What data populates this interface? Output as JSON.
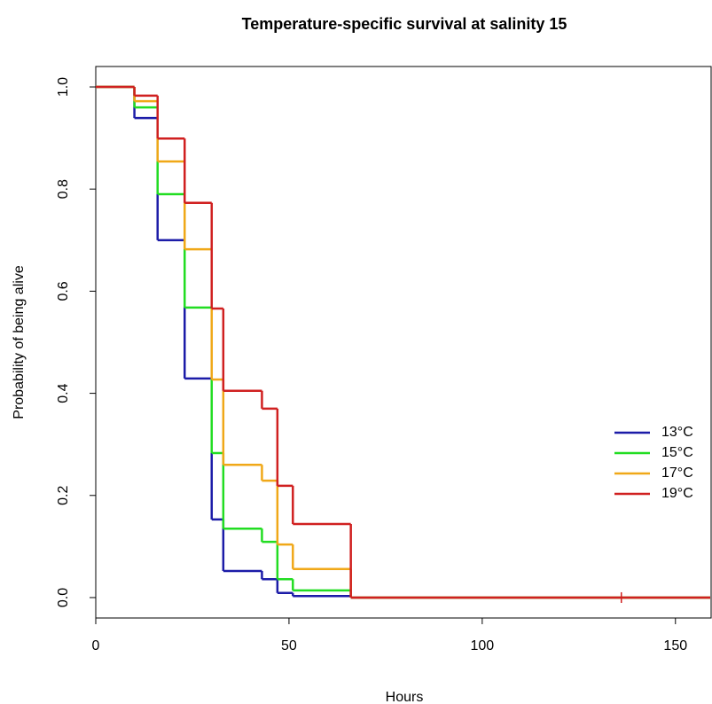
{
  "chart_data": {
    "type": "step",
    "title": "Temperature-specific survival at salinity 15",
    "x_label": "Hours",
    "y_label": "Probability of being alive",
    "x": [
      0,
      10,
      16,
      23,
      30,
      33,
      43,
      47,
      51,
      66
    ],
    "series": [
      {
        "name": "13°C",
        "color": "#1c1ca8",
        "values": [
          1.0,
          0.939,
          0.7,
          0.429,
          0.153,
          0.052,
          0.036,
          0.009,
          0.003,
          0
        ]
      },
      {
        "name": "15°C",
        "color": "#22dd22",
        "values": [
          1.0,
          0.96,
          0.79,
          0.568,
          0.283,
          0.135,
          0.109,
          0.036,
          0.014,
          0
        ]
      },
      {
        "name": "17°C",
        "color": "#f0a818",
        "values": [
          1.0,
          0.972,
          0.854,
          0.682,
          0.427,
          0.26,
          0.229,
          0.104,
          0.056,
          0
        ]
      },
      {
        "name": "19°C",
        "color": "#d02020",
        "values": [
          1.0,
          0.983,
          0.899,
          0.773,
          0.566,
          0.405,
          0.37,
          0.219,
          0.144,
          0
        ]
      }
    ],
    "censor_marks": [
      {
        "x": 136,
        "y": 0
      }
    ],
    "xlim": [
      0,
      159
    ],
    "ylim": [
      -0.04,
      1.04
    ],
    "xticks": [
      0,
      50,
      100,
      150
    ],
    "yticks": [
      {
        "value": 0,
        "label": "0.0"
      },
      0.2,
      0.4,
      0.6,
      0.8,
      {
        "value": 1,
        "label": "1.0"
      }
    ],
    "legend": "bottomright"
  }
}
